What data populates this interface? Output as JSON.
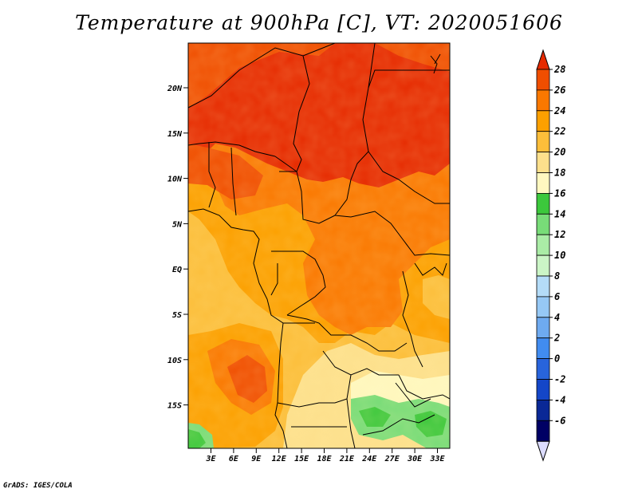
{
  "title": "Temperature at 900hPa [C], VT: 2020051606",
  "credit": "GrADS: IGES/COLA",
  "map": {
    "lat_labels": [
      "20N",
      "15N",
      "10N",
      "5N",
      "EQ",
      "5S",
      "10S",
      "15S"
    ],
    "lon_labels": [
      "3E",
      "6E",
      "9E",
      "12E",
      "15E",
      "18E",
      "21E",
      "24E",
      "27E",
      "30E",
      "33E"
    ]
  },
  "colorbar": {
    "levels": [
      "28",
      "26",
      "24",
      "22",
      "20",
      "18",
      "16",
      "14",
      "12",
      "10",
      "8",
      "6",
      "4",
      "2",
      "0",
      "-2",
      "-4",
      "-6"
    ],
    "colors": [
      "#e62a00",
      "#f04e00",
      "#fa7800",
      "#fca000",
      "#fcbe3a",
      "#fde08c",
      "#fff8c0",
      "#3cc83c",
      "#78dc78",
      "#aaeca6",
      "#cbf5c6",
      "#b4dcf8",
      "#96c8f5",
      "#6eaaf0",
      "#418cf0",
      "#2864dc",
      "#1446c8",
      "#0a2896",
      "#000064",
      "#dcdcff"
    ]
  }
}
